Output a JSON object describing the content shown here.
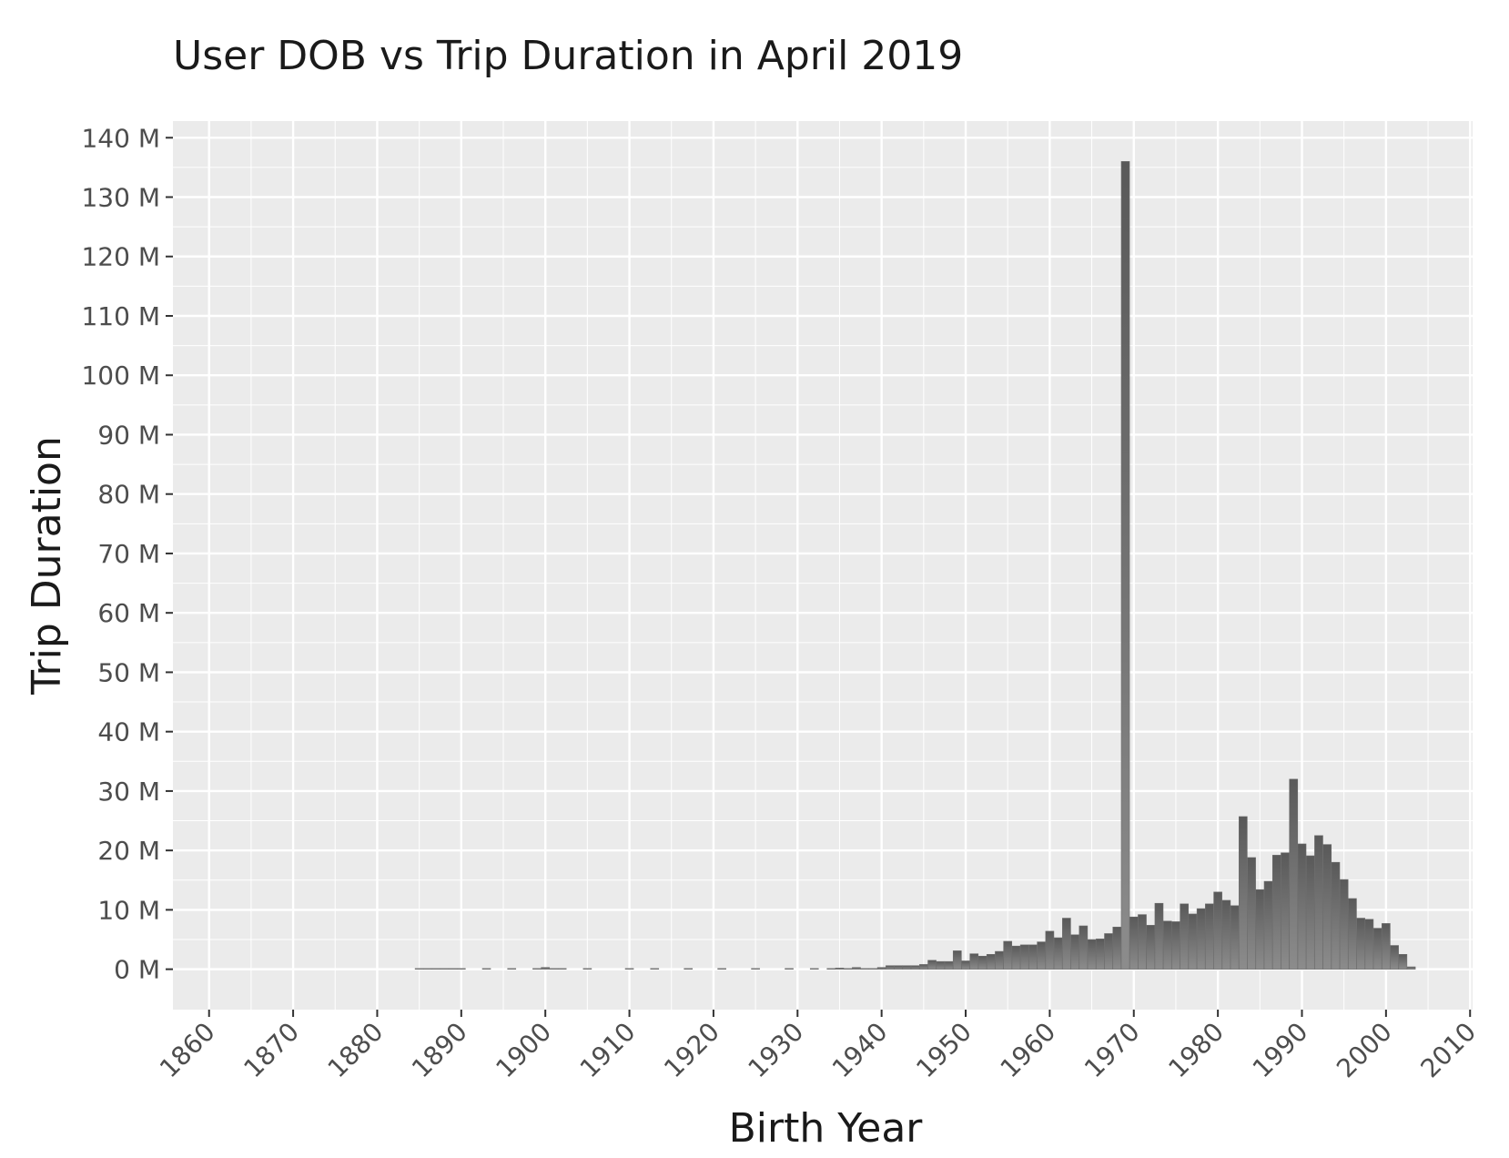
{
  "chart_data": {
    "type": "bar",
    "title": "User DOB vs Trip Duration in April 2019",
    "xlabel": "Birth Year",
    "ylabel": "Trip Duration",
    "xlim": [
      1855.7,
      2010.3
    ],
    "ylim": [
      -6.8,
      142.8
    ],
    "x_ticks": [
      {
        "value": 1860,
        "label": "1860"
      },
      {
        "value": 1870,
        "label": "1870"
      },
      {
        "value": 1880,
        "label": "1880"
      },
      {
        "value": 1890,
        "label": "1890"
      },
      {
        "value": 1900,
        "label": "1900"
      },
      {
        "value": 1910,
        "label": "1910"
      },
      {
        "value": 1920,
        "label": "1920"
      },
      {
        "value": 1930,
        "label": "1930"
      },
      {
        "value": 1940,
        "label": "1940"
      },
      {
        "value": 1950,
        "label": "1950"
      },
      {
        "value": 1960,
        "label": "1960"
      },
      {
        "value": 1970,
        "label": "1970"
      },
      {
        "value": 1980,
        "label": "1980"
      },
      {
        "value": 1990,
        "label": "1990"
      },
      {
        "value": 2000,
        "label": "2000"
      },
      {
        "value": 2010,
        "label": "2010"
      }
    ],
    "y_ticks": [
      {
        "value": 0,
        "label": "0 M"
      },
      {
        "value": 10,
        "label": "10 M"
      },
      {
        "value": 20,
        "label": "20 M"
      },
      {
        "value": 30,
        "label": "30 M"
      },
      {
        "value": 40,
        "label": "40 M"
      },
      {
        "value": 50,
        "label": "50 M"
      },
      {
        "value": 60,
        "label": "60 M"
      },
      {
        "value": 70,
        "label": "70 M"
      },
      {
        "value": 80,
        "label": "80 M"
      },
      {
        "value": 90,
        "label": "90 M"
      },
      {
        "value": 100,
        "label": "100 M"
      },
      {
        "value": 110,
        "label": "110 M"
      },
      {
        "value": 120,
        "label": "120 M"
      },
      {
        "value": 130,
        "label": "130 M"
      },
      {
        "value": 140,
        "label": "140 M"
      }
    ],
    "unit": "M",
    "grid": true,
    "colors": {
      "panel": "#ebebeb",
      "grid": "#ffffff",
      "bar_top": "#595959",
      "bar_bottom": "#8c8c8c"
    },
    "x": [
      1885,
      1886,
      1887,
      1888,
      1889,
      1890,
      1893,
      1896,
      1899,
      1900,
      1901,
      1902,
      1905,
      1910,
      1913,
      1917,
      1921,
      1925,
      1929,
      1932,
      1934,
      1935,
      1936,
      1937,
      1938,
      1939,
      1940,
      1941,
      1942,
      1943,
      1944,
      1945,
      1946,
      1947,
      1948,
      1949,
      1950,
      1951,
      1952,
      1953,
      1954,
      1955,
      1956,
      1957,
      1958,
      1959,
      1960,
      1961,
      1962,
      1963,
      1964,
      1965,
      1966,
      1967,
      1968,
      1969,
      1970,
      1971,
      1972,
      1973,
      1974,
      1975,
      1976,
      1977,
      1978,
      1979,
      1980,
      1981,
      1982,
      1983,
      1984,
      1985,
      1986,
      1987,
      1988,
      1989,
      1990,
      1991,
      1992,
      1993,
      1994,
      1995,
      1996,
      1997,
      1998,
      1999,
      2000,
      2001,
      2002,
      2003
    ],
    "values": [
      0.1,
      0.1,
      0.1,
      0.1,
      0.1,
      0.1,
      0.05,
      0.05,
      0.1,
      0.3,
      0.05,
      0.05,
      0.05,
      0.05,
      0.05,
      0.05,
      0.05,
      0.1,
      0.1,
      0.1,
      0.1,
      0.2,
      0.05,
      0.3,
      0.05,
      0.1,
      0.3,
      0.6,
      0.6,
      0.6,
      0.6,
      0.8,
      1.5,
      1.3,
      1.3,
      3.1,
      1.4,
      2.6,
      2.2,
      2.5,
      3.0,
      4.7,
      3.9,
      4.1,
      4.1,
      4.6,
      6.4,
      5.3,
      8.6,
      5.8,
      7.3,
      5.0,
      5.1,
      6.0,
      7.1,
      136.0,
      8.8,
      9.2,
      7.4,
      11.1,
      8.1,
      8.0,
      11.0,
      9.3,
      10.2,
      11.0,
      13.0,
      11.6,
      10.7,
      25.7,
      18.8,
      13.4,
      14.8,
      19.2,
      19.6,
      32.0,
      21.1,
      19.1,
      22.5,
      21.0,
      18.0,
      15.1,
      11.9,
      8.6,
      8.4,
      6.9,
      7.7,
      4.0,
      2.5,
      0.4
    ]
  }
}
